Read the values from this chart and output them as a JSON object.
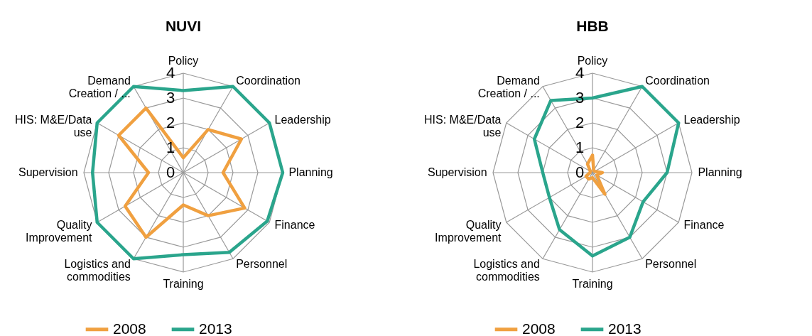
{
  "chart_data": [
    {
      "type": "radar",
      "title": "NUVI",
      "categories": [
        "Policy",
        "Coordination",
        "Leadership",
        "Planning",
        "Finance",
        "Personnel",
        "Training",
        "Logistics and commodities",
        "Quality Improvement",
        "Supervision",
        "HIS: M&E/Data use",
        "Demand Creation / ..."
      ],
      "series": [
        {
          "name": "2008",
          "color": "#f0a040",
          "values": [
            0.6,
            2.0,
            2.7,
            1.6,
            2.85,
            2.0,
            1.3,
            3.0,
            2.7,
            1.4,
            3.0,
            3.0
          ]
        },
        {
          "name": "2013",
          "color": "#2aa58c",
          "values": [
            3.3,
            4.0,
            4.0,
            4.0,
            3.9,
            3.7,
            3.3,
            4.0,
            4.0,
            3.65,
            4.0,
            4.0
          ]
        }
      ],
      "ylim": [
        0,
        4
      ],
      "yticks": [
        0,
        1,
        2,
        3,
        4
      ],
      "grid": true,
      "legend": "bottom",
      "marker": "none"
    },
    {
      "type": "radar",
      "title": "HBB",
      "categories": [
        "Policy",
        "Coordination",
        "Leadership",
        "Planning",
        "Finance",
        "Personnel",
        "Training",
        "Logistics and commodities",
        "Quality Improvement",
        "Supervision",
        "HIS: M&E/Data use",
        "Demand Creation / ..."
      ],
      "series": [
        {
          "name": "2008",
          "color": "#f0a040",
          "values": [
            0.7,
            0.1,
            0.1,
            0.4,
            0.2,
            1.0,
            0.2,
            0.3,
            0.3,
            0.1,
            0.1,
            0.4
          ]
        },
        {
          "name": "2013",
          "color": "#2aa58c",
          "values": [
            3.0,
            4.0,
            4.0,
            3.0,
            2.35,
            3.0,
            3.35,
            2.65,
            2.0,
            2.0,
            2.7,
            3.35
          ]
        }
      ],
      "ylim": [
        0,
        4
      ],
      "yticks": [
        0,
        1,
        2,
        3,
        4
      ],
      "grid": true,
      "legend": "bottom",
      "marker": "none"
    }
  ]
}
